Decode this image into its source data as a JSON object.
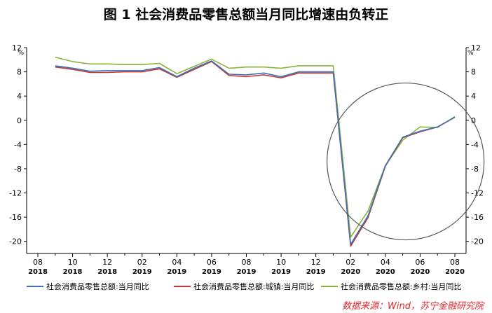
{
  "title": "图 1  社会消费品零售总额当月同比增速由负转正",
  "source_note": "数据来源：Wind，苏宁金融研究院",
  "chart_data": {
    "type": "line",
    "y_unit": "%",
    "ylim": [
      -22,
      12
    ],
    "yticks": [
      12,
      8,
      4,
      0,
      -4,
      -8,
      -12,
      -16,
      -20
    ],
    "x": [
      "2018-08",
      "2018-09",
      "2018-10",
      "2018-11",
      "2018-12",
      "2019-01",
      "2019-02",
      "2019-03",
      "2019-04",
      "2019-05",
      "2019-06",
      "2019-07",
      "2019-08",
      "2019-09",
      "2019-10",
      "2019-11",
      "2019-12",
      "2020-01",
      "2020-02",
      "2020-03",
      "2020-04",
      "2020-05",
      "2020-06",
      "2020-07",
      "2020-08"
    ],
    "x_tick_labels": [
      {
        "month": "08",
        "year": "2018"
      },
      {
        "month": "10",
        "year": "2018"
      },
      {
        "month": "12",
        "year": "2018"
      },
      {
        "month": "02",
        "year": "2019"
      },
      {
        "month": "04",
        "year": "2019"
      },
      {
        "month": "06",
        "year": "2019"
      },
      {
        "month": "08",
        "year": "2019"
      },
      {
        "month": "10",
        "year": "2019"
      },
      {
        "month": "12",
        "year": "2019"
      },
      {
        "month": "02",
        "year": "2020"
      },
      {
        "month": "04",
        "year": "2020"
      },
      {
        "month": "06",
        "year": "2020"
      },
      {
        "month": "08",
        "year": "2020"
      }
    ],
    "grid": false,
    "legend_position": "bottom",
    "annotation": "circle highlighting 2020 recovery",
    "series": [
      {
        "name": "社会消费品零售总额:当月同比",
        "color": "#3f6fb5",
        "values": [
          null,
          9.0,
          8.6,
          8.1,
          8.2,
          8.2,
          8.2,
          8.7,
          7.2,
          8.6,
          9.8,
          7.6,
          7.5,
          7.8,
          7.2,
          8.0,
          8.0,
          8.0,
          -20.5,
          -15.8,
          -7.5,
          -2.8,
          -1.8,
          -1.1,
          0.5
        ]
      },
      {
        "name": "社会消费品零售总额:城镇:当月同比",
        "color": "#c0393b",
        "values": [
          null,
          8.8,
          8.4,
          7.9,
          7.9,
          8.0,
          8.0,
          8.5,
          7.1,
          8.4,
          9.7,
          7.4,
          7.2,
          7.5,
          7.0,
          7.8,
          7.8,
          7.8,
          -20.8,
          -16.1,
          -7.6,
          -2.9,
          -1.9,
          -1.1,
          0.5
        ]
      },
      {
        "name": "社会消费品零售总额:乡村:当月同比",
        "color": "#8cb33d",
        "values": [
          null,
          10.4,
          9.7,
          9.3,
          9.3,
          9.2,
          9.2,
          9.4,
          7.7,
          8.9,
          10.1,
          8.6,
          8.8,
          8.8,
          8.6,
          9.0,
          9.0,
          9.0,
          -19.3,
          -15.0,
          -7.5,
          -3.3,
          -1.1,
          -1.2,
          0.6
        ]
      }
    ]
  }
}
